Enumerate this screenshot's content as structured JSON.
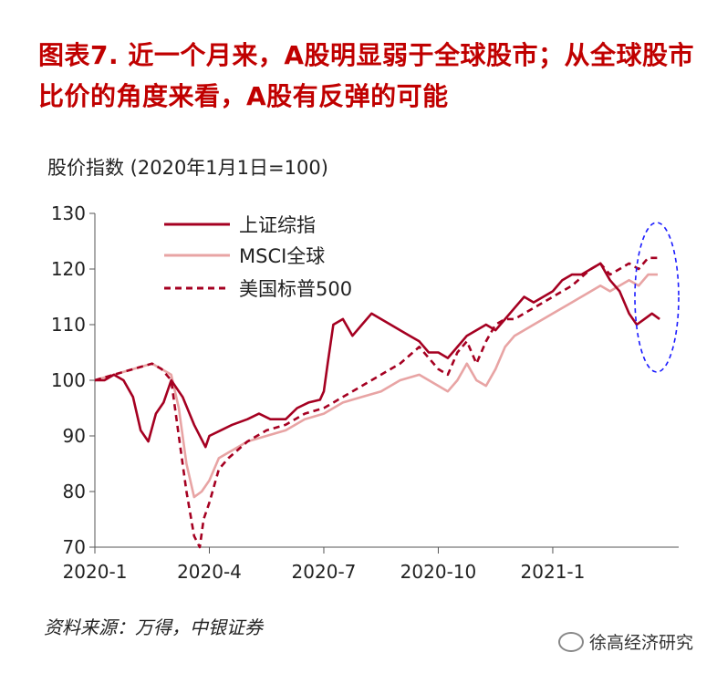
{
  "title": "图表7. 近一个月来，A股明显弱于全球股市；从全球股市比价的角度来看，A股有反弹的可能",
  "unit_label": "股价指数 (2020年1月1日=100)",
  "source": "资料来源：万得，中银证券",
  "watermark": "徐高经济研究",
  "colors": {
    "title": "#c00000",
    "shanghai": "#a50021",
    "msci": "#e8a4a4",
    "sp500": "#a50021",
    "ellipse": "#1a1aff"
  },
  "chart_data": {
    "type": "line",
    "title": "",
    "ylabel": "股价指数 (2020年1月1日=100)",
    "xlabel": "",
    "ylim": [
      70,
      130
    ],
    "yticks": [
      70,
      80,
      90,
      100,
      110,
      120,
      130
    ],
    "xlim": [
      0,
      15.3
    ],
    "xtick_positions": [
      0,
      3,
      6,
      9,
      12
    ],
    "xtick_labels": [
      "2020-1",
      "2020-4",
      "2020-7",
      "2020-10",
      "2021-1"
    ],
    "legend": {
      "position": "top-left",
      "entries": [
        "上证综指",
        "MSCI全球",
        "美国标普500"
      ]
    },
    "annotation": "blue dashed ellipse around last month",
    "series": [
      {
        "name": "上证综指",
        "style": "solid",
        "x": [
          0,
          0.25,
          0.5,
          0.75,
          1.0,
          1.2,
          1.4,
          1.6,
          1.8,
          2.0,
          2.3,
          2.6,
          2.9,
          3.0,
          3.3,
          3.6,
          4.0,
          4.3,
          4.6,
          5.0,
          5.3,
          5.6,
          5.9,
          6.0,
          6.1,
          6.25,
          6.5,
          6.75,
          7.0,
          7.25,
          7.5,
          7.75,
          8.0,
          8.25,
          8.5,
          8.75,
          9.0,
          9.25,
          9.5,
          9.75,
          10.0,
          10.25,
          10.5,
          10.75,
          11.0,
          11.25,
          11.5,
          11.75,
          12.0,
          12.25,
          12.5,
          12.75,
          13.0,
          13.25,
          13.5,
          13.75,
          14.0,
          14.2,
          14.4,
          14.6,
          14.8
        ],
        "values": [
          100,
          100,
          101,
          100,
          97,
          91,
          89,
          94,
          96,
          100,
          97,
          92,
          88,
          90,
          91,
          92,
          93,
          94,
          93,
          93,
          95,
          96,
          96.5,
          98,
          103,
          110,
          111,
          108,
          110,
          112,
          111,
          110,
          109,
          108,
          107,
          105,
          105,
          104,
          106,
          108,
          109,
          110,
          109,
          111,
          113,
          115,
          114,
          115,
          116,
          118,
          119,
          119,
          120,
          121,
          118,
          116,
          112,
          110,
          111,
          112,
          111
        ]
      },
      {
        "name": "MSCI全球",
        "style": "solid",
        "x": [
          0,
          0.5,
          1.0,
          1.5,
          1.75,
          2.0,
          2.2,
          2.4,
          2.6,
          2.8,
          3.0,
          3.25,
          3.5,
          4.0,
          4.5,
          5.0,
          5.5,
          6.0,
          6.5,
          7.0,
          7.5,
          8.0,
          8.5,
          9.0,
          9.25,
          9.5,
          9.75,
          10.0,
          10.25,
          10.5,
          10.75,
          11.0,
          11.5,
          12.0,
          12.5,
          13.0,
          13.25,
          13.5,
          13.75,
          14.0,
          14.25,
          14.5,
          14.75
        ],
        "values": [
          100,
          101,
          102,
          103,
          102,
          101,
          95,
          85,
          79,
          80,
          82,
          86,
          87,
          89,
          90,
          91,
          93,
          94,
          96,
          97,
          98,
          100,
          101,
          99,
          98,
          100,
          103,
          100,
          99,
          102,
          106,
          108,
          110,
          112,
          114,
          116,
          117,
          116,
          117,
          118,
          117,
          119,
          119
        ]
      },
      {
        "name": "美国标普500",
        "style": "dashed",
        "x": [
          0,
          0.5,
          1.0,
          1.5,
          1.75,
          2.0,
          2.2,
          2.4,
          2.6,
          2.75,
          2.85,
          3.0,
          3.25,
          3.5,
          4.0,
          4.5,
          5.0,
          5.5,
          6.0,
          6.5,
          7.0,
          7.5,
          8.0,
          8.5,
          9.0,
          9.25,
          9.5,
          9.75,
          10.0,
          10.25,
          10.5,
          10.75,
          11.0,
          11.5,
          12.0,
          12.5,
          13.0,
          13.25,
          13.5,
          13.75,
          14.0,
          14.25,
          14.5,
          14.75
        ],
        "values": [
          100,
          101,
          102,
          103,
          102,
          100,
          90,
          80,
          72,
          70,
          75,
          78,
          84,
          86,
          89,
          91,
          92,
          94,
          95,
          97,
          99,
          101,
          103,
          106,
          102,
          101,
          105,
          107,
          103,
          107,
          110,
          111,
          111,
          113,
          115,
          117,
          120,
          121,
          119,
          120,
          121,
          120,
          122,
          122
        ]
      }
    ]
  }
}
